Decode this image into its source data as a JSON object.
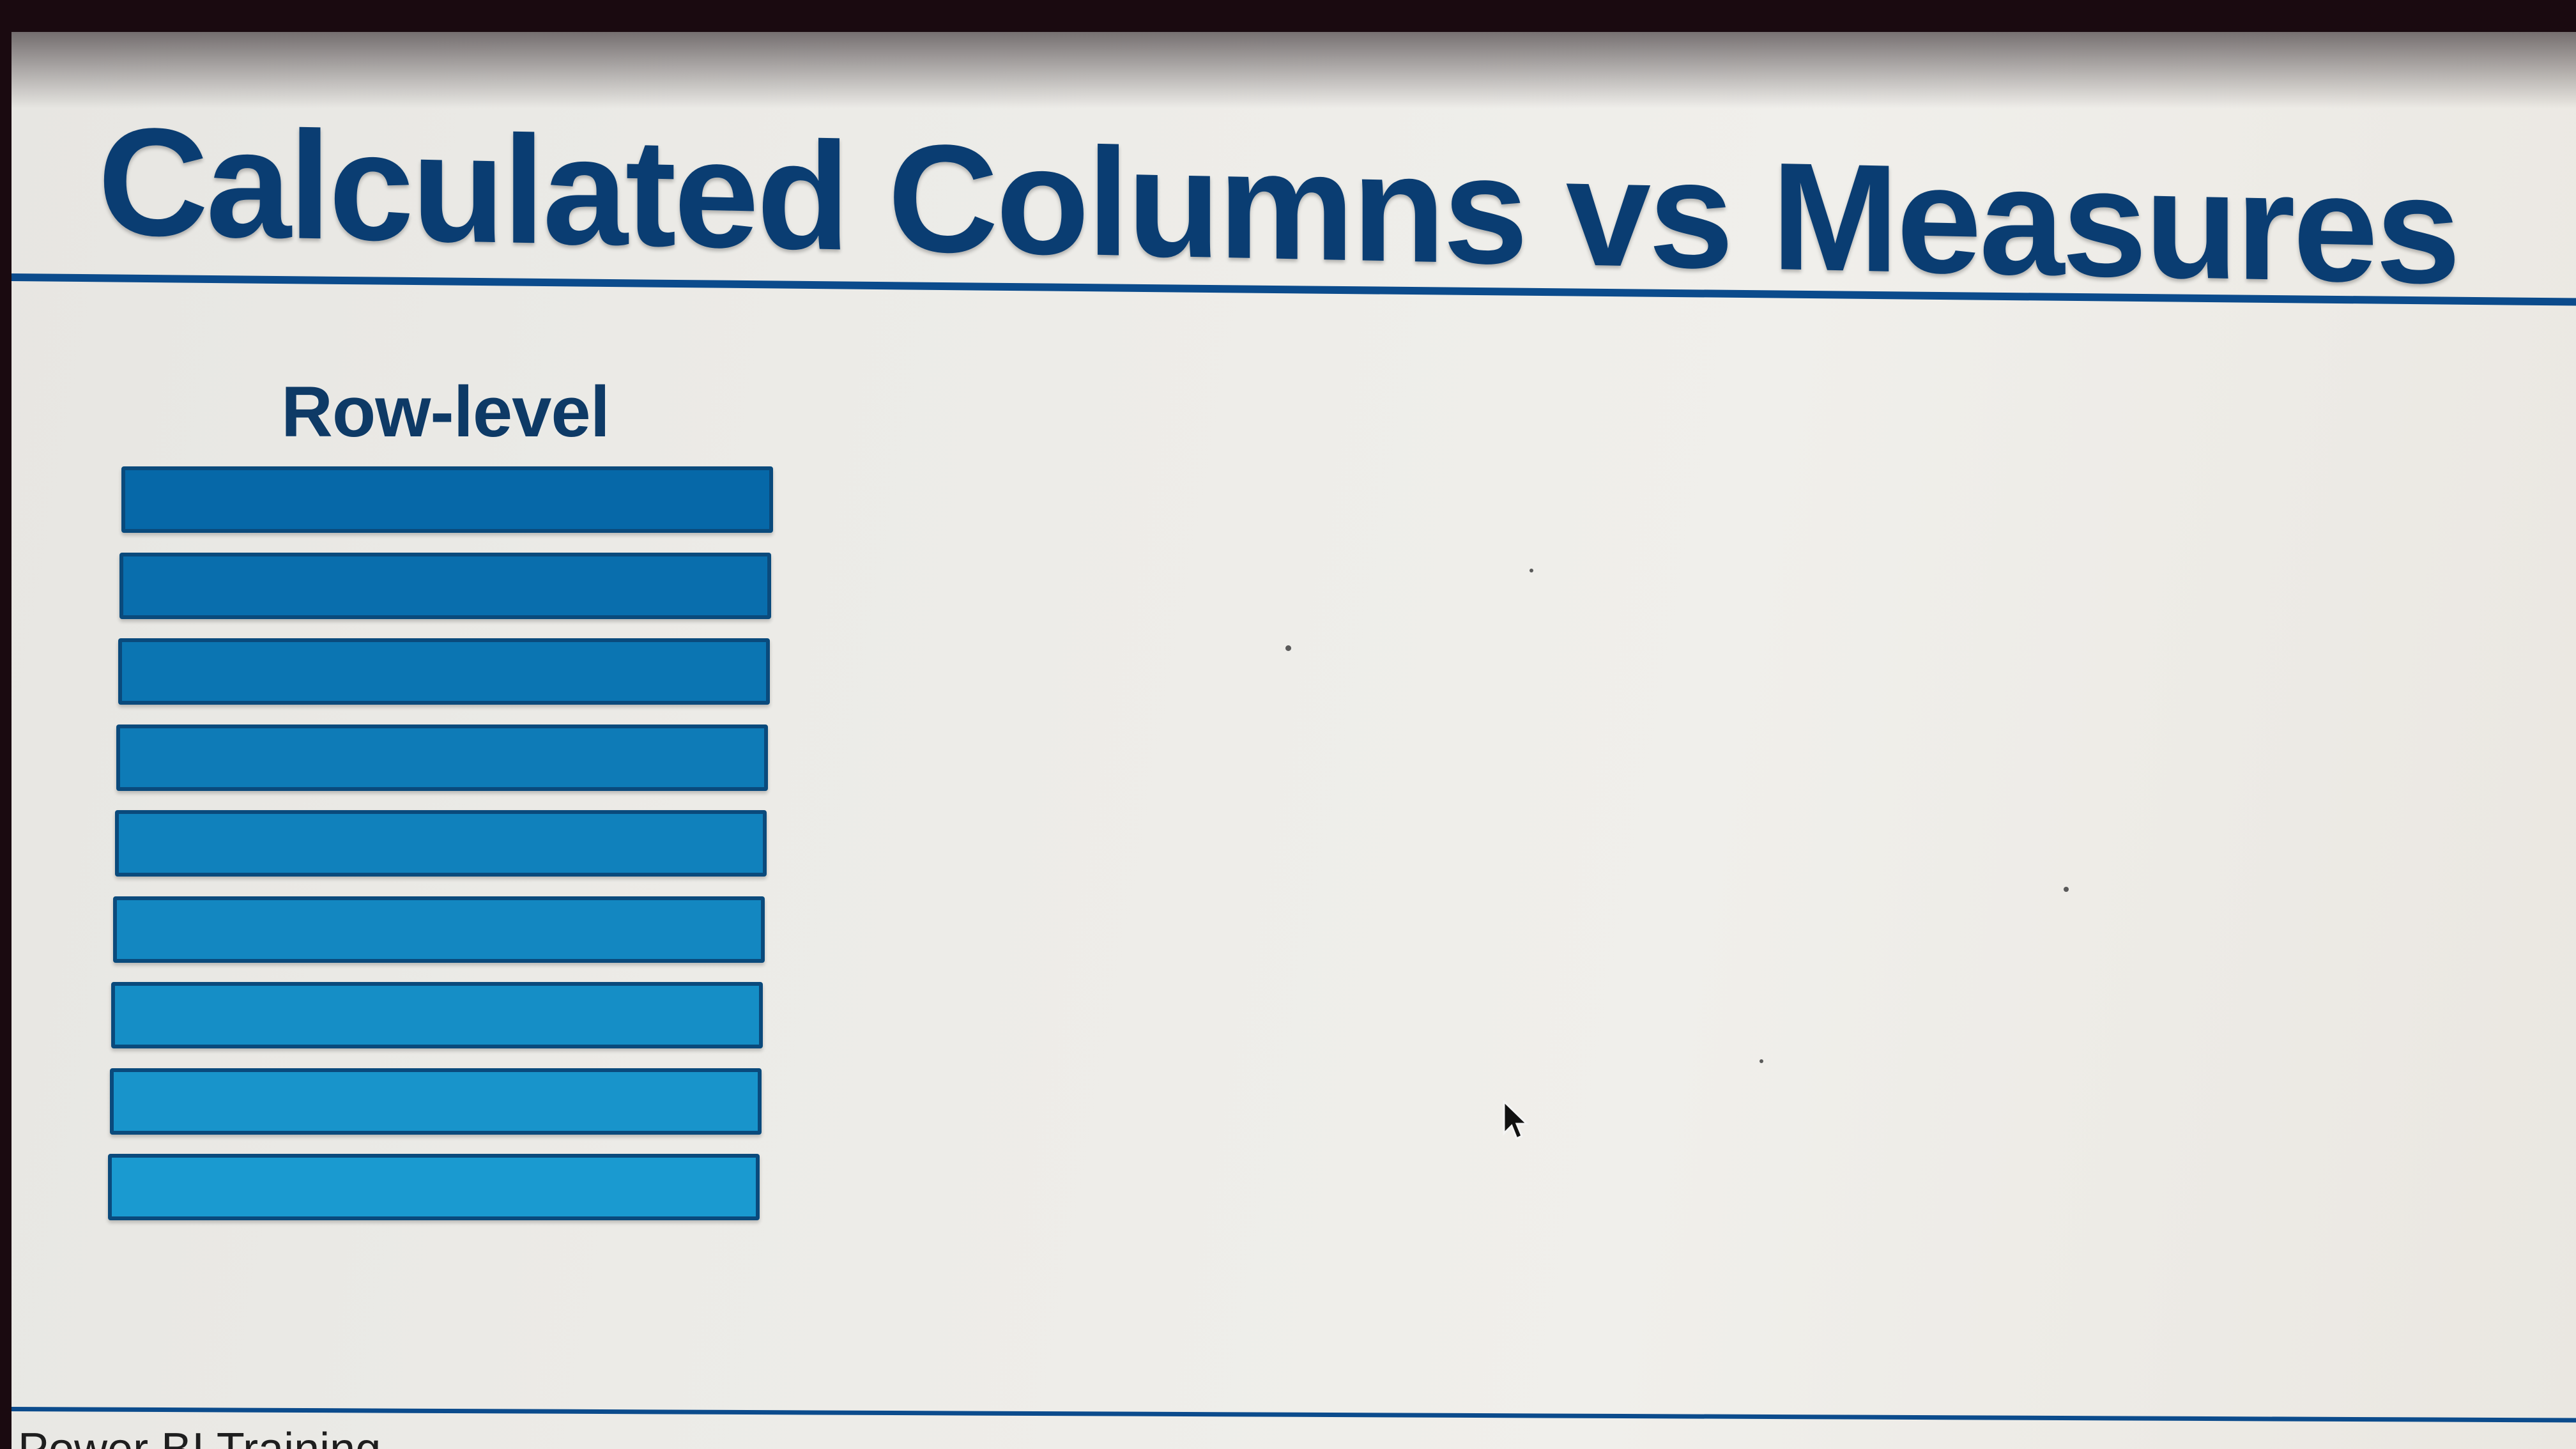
{
  "slide": {
    "title": "Calculated Columns vs Measures",
    "row_heading": "Row-level",
    "row_bar_count": 9,
    "footer_text": "Power BI Training"
  },
  "colors": {
    "title": "#0a3d72",
    "rule": "#0b4b8c",
    "bar_top": "#0668a8",
    "bar_bottom": "#1a9ad0"
  },
  "icons": {
    "cursor": "mouse-pointer-icon"
  }
}
